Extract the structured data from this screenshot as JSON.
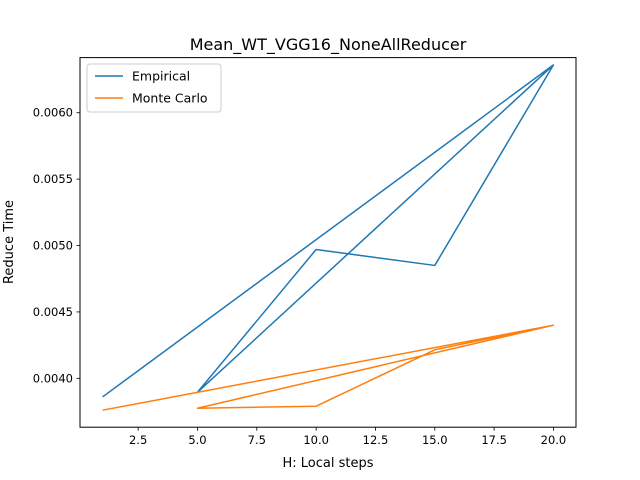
{
  "chart_data": {
    "type": "line",
    "title": "Mean_WT_VGG16_NoneAllReducer",
    "xlabel": "H: Local steps",
    "ylabel": "Reduce Time",
    "xlim": [
      0.05,
      20.95
    ],
    "ylim": [
      0.003632,
      0.006415
    ],
    "xticks": [
      2.5,
      5.0,
      7.5,
      10.0,
      12.5,
      15.0,
      17.5,
      20.0
    ],
    "xtick_labels": [
      "2.5",
      "5.0",
      "7.5",
      "10.0",
      "12.5",
      "15.0",
      "17.5",
      "20.0"
    ],
    "yticks": [
      0.004,
      0.0045,
      0.005,
      0.0055,
      0.006
    ],
    "ytick_labels": [
      "0.0040",
      "0.0045",
      "0.0050",
      "0.0055",
      "0.0060"
    ],
    "grid": false,
    "legend_position": "upper left",
    "series": [
      {
        "name": "Empirical",
        "color": "#1f77b4",
        "x": [
          1,
          20,
          5,
          10,
          15,
          20
        ],
        "y": [
          0.00386,
          0.00636,
          0.003895,
          0.00497,
          0.00485,
          0.00636
        ]
      },
      {
        "name": "Monte Carlo",
        "color": "#ff7f0e",
        "x": [
          1,
          20,
          5,
          10,
          15,
          20
        ],
        "y": [
          0.00376,
          0.0044,
          0.003775,
          0.00379,
          0.004215,
          0.0044
        ]
      }
    ]
  }
}
